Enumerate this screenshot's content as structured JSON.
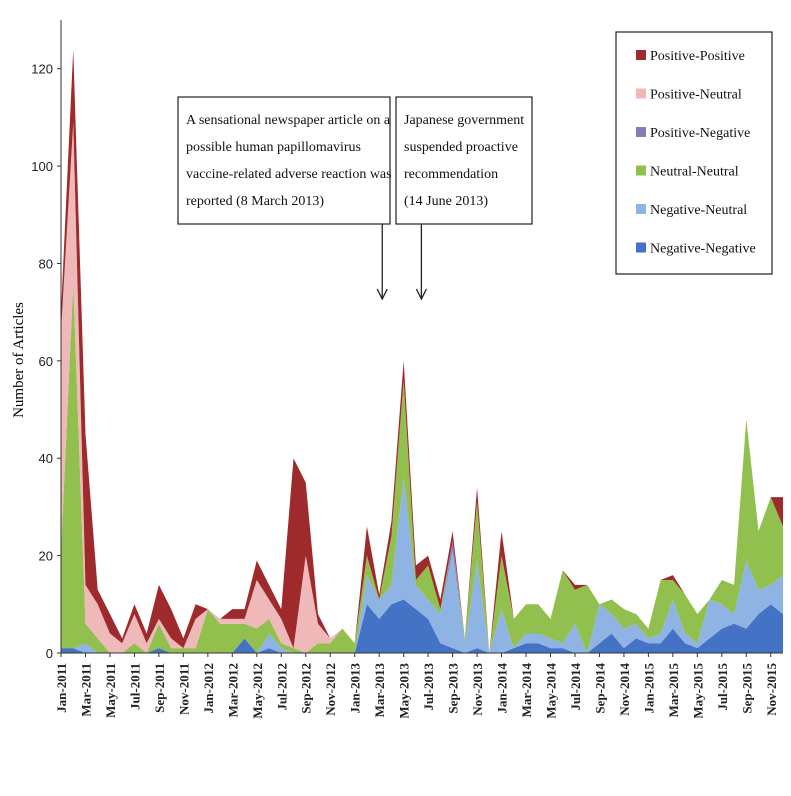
{
  "chart_data": {
    "type": "area",
    "stacked": true,
    "title": "",
    "xlabel": "",
    "ylabel": "Number of Articles",
    "ylim": [
      0,
      130
    ],
    "yticks": [
      0,
      20,
      40,
      60,
      80,
      100,
      120
    ],
    "grid": false,
    "legend_position": "top-right",
    "x": [
      "Jan-2011",
      "Feb-2011",
      "Mar-2011",
      "Apr-2011",
      "May-2011",
      "Jun-2011",
      "Jul-2011",
      "Aug-2011",
      "Sep-2011",
      "Oct-2011",
      "Nov-2011",
      "Dec-2011",
      "Jan-2012",
      "Feb-2012",
      "Mar-2012",
      "Apr-2012",
      "May-2012",
      "Jun-2012",
      "Jul-2012",
      "Aug-2012",
      "Sep-2012",
      "Oct-2012",
      "Nov-2012",
      "Dec-2012",
      "Jan-2013",
      "Feb-2013",
      "Mar-2013",
      "Apr-2013",
      "May-2013",
      "Jun-2013",
      "Jul-2013",
      "Aug-2013",
      "Sep-2013",
      "Oct-2013",
      "Nov-2013",
      "Dec-2013",
      "Jan-2014",
      "Feb-2014",
      "Mar-2014",
      "Apr-2014",
      "May-2014",
      "Jun-2014",
      "Jul-2014",
      "Aug-2014",
      "Sep-2014",
      "Oct-2014",
      "Nov-2014",
      "Dec-2014",
      "Jan-2015",
      "Feb-2015",
      "Mar-2015",
      "Apr-2015",
      "May-2015",
      "Jun-2015",
      "Jul-2015",
      "Aug-2015",
      "Sep-2015",
      "Oct-2015",
      "Nov-2015",
      "Dec-2015"
    ],
    "xticks": [
      "Jan-2011",
      "Mar-2011",
      "May-2011",
      "Jul-2011",
      "Sep-2011",
      "Nov-2011",
      "Jan-2012",
      "Mar-2012",
      "May-2012",
      "Jul-2012",
      "Sep-2012",
      "Nov-2012",
      "Jan-2013",
      "Mar-2013",
      "May-2013",
      "Jul-2013",
      "Sep-2013",
      "Nov-2013",
      "Jan-2014",
      "Mar-2014",
      "May-2014",
      "Jul-2014",
      "Sep-2014",
      "Nov-2014",
      "Jan-2015",
      "Mar-2015",
      "May-2015",
      "Jul-2015",
      "Sep-2015",
      "Nov-2015"
    ],
    "series": [
      {
        "name": "Negative-Negative",
        "color": "#4472c4",
        "values": [
          1,
          1,
          0,
          0,
          0,
          0,
          0,
          0,
          1,
          0,
          0,
          0,
          0,
          0,
          0,
          3,
          0,
          1,
          0,
          0,
          0,
          0,
          0,
          0,
          0,
          10,
          7,
          10,
          11,
          9,
          7,
          2,
          1,
          0,
          1,
          0,
          0,
          1,
          2,
          2,
          1,
          1,
          0,
          0,
          2,
          4,
          1,
          3,
          2,
          2,
          5,
          2,
          1,
          3,
          5,
          6,
          5,
          8,
          10,
          8
        ]
      },
      {
        "name": "Negative-Neutral",
        "color": "#8fb4e3",
        "values": [
          0,
          0,
          2,
          0,
          0,
          0,
          0,
          0,
          0,
          0,
          0,
          0,
          0,
          0,
          0,
          0,
          0,
          3,
          1,
          0,
          0,
          0,
          0,
          0,
          0,
          6,
          4,
          4,
          25,
          5,
          4,
          6,
          20,
          2,
          18,
          0,
          9,
          0,
          2,
          2,
          2,
          1,
          6,
          0,
          8,
          4,
          4,
          3,
          1,
          2,
          6,
          2,
          1,
          8,
          5,
          2,
          14,
          5,
          4,
          8
        ]
      },
      {
        "name": "Positive-Negative",
        "color": "#8a7bb8",
        "values": [
          0,
          0,
          0,
          0,
          0,
          0,
          0,
          0,
          0,
          0,
          0,
          0,
          0,
          0,
          0,
          0,
          0,
          0,
          0,
          0,
          0,
          0,
          0,
          0,
          0,
          0,
          0,
          0,
          0,
          0,
          0,
          0,
          2,
          0,
          0,
          0,
          0,
          0,
          0,
          0,
          0,
          0,
          0,
          0,
          0,
          0,
          0,
          0,
          0,
          0,
          0,
          0,
          0,
          0,
          0,
          0,
          0,
          0,
          0,
          0
        ]
      },
      {
        "name": "Neutral-Neutral",
        "color": "#92c04f",
        "values": [
          20,
          75,
          4,
          3,
          0,
          0,
          2,
          0,
          5,
          1,
          1,
          1,
          9,
          6,
          6,
          3,
          5,
          3,
          1,
          1,
          0,
          2,
          2,
          5,
          2,
          4,
          0,
          10,
          20,
          1,
          7,
          1,
          0,
          1,
          12,
          0,
          11,
          6,
          6,
          6,
          4,
          15,
          7,
          14,
          0,
          3,
          4,
          2,
          2,
          11,
          4,
          8,
          6,
          0,
          5,
          6,
          29,
          12,
          18,
          10
        ]
      },
      {
        "name": "Positive-Neutral",
        "color": "#f0b9b9",
        "values": [
          45,
          33,
          8,
          7,
          4,
          2,
          6,
          2,
          1,
          2,
          0,
          6,
          0,
          1,
          1,
          1,
          10,
          4,
          5,
          0,
          20,
          4,
          1,
          0,
          0,
          0,
          0,
          0,
          0,
          0,
          0,
          0,
          0,
          0,
          0,
          0,
          0,
          0,
          0,
          0,
          0,
          0,
          0,
          0,
          0,
          0,
          0,
          0,
          0,
          0,
          0,
          0,
          0,
          0,
          0,
          0,
          0,
          0,
          0,
          0
        ]
      },
      {
        "name": "Positive-Positive",
        "color": "#9e2a2b",
        "values": [
          4,
          15,
          31,
          3,
          4,
          1,
          2,
          2,
          7,
          6,
          2,
          3,
          0,
          0,
          2,
          2,
          4,
          3,
          2,
          39,
          15,
          2,
          0,
          0,
          0,
          6,
          1,
          3,
          4,
          3,
          2,
          2,
          2,
          0,
          3,
          0,
          5,
          0,
          0,
          0,
          0,
          0,
          1,
          0,
          0,
          0,
          0,
          0,
          0,
          0,
          1,
          0,
          0,
          0,
          0,
          0,
          0,
          0,
          0,
          6
        ]
      }
    ],
    "legend_order": [
      "Positive-Positive",
      "Positive-Neutral",
      "Positive-Negative",
      "Neutral-Neutral",
      "Negative-Neutral",
      "Negative-Negative"
    ],
    "annotations": [
      {
        "text": "A sensational newspaper article on a possible human papillomavirus vaccine-related adverse reaction was reported (8 March 2013)",
        "x": "Mar-2013"
      },
      {
        "text": "Japanese government suspended proactive recommendation (14 June 2013)",
        "x": "Jun-2013"
      }
    ]
  },
  "legend": {
    "items": [
      {
        "label": "Positive-Positive",
        "color": "#9e2a2b"
      },
      {
        "label": "Positive-Neutral",
        "color": "#f0b9b9"
      },
      {
        "label": "Positive-Negative",
        "color": "#8a7bb8"
      },
      {
        "label": "Neutral-Neutral",
        "color": "#92c04f"
      },
      {
        "label": "Negative-Neutral",
        "color": "#8fb4e3"
      },
      {
        "label": "Negative-Negative",
        "color": "#4472c4"
      }
    ]
  },
  "annotations": {
    "first": {
      "lines": [
        "A sensational newspaper article on a",
        "possible human papillomavirus",
        "vaccine-related adverse reaction was",
        "reported (8 March 2013)"
      ]
    },
    "second": {
      "lines": [
        "Japanese government",
        "suspended proactive",
        "recommendation",
        "(14 June 2013)"
      ]
    }
  }
}
